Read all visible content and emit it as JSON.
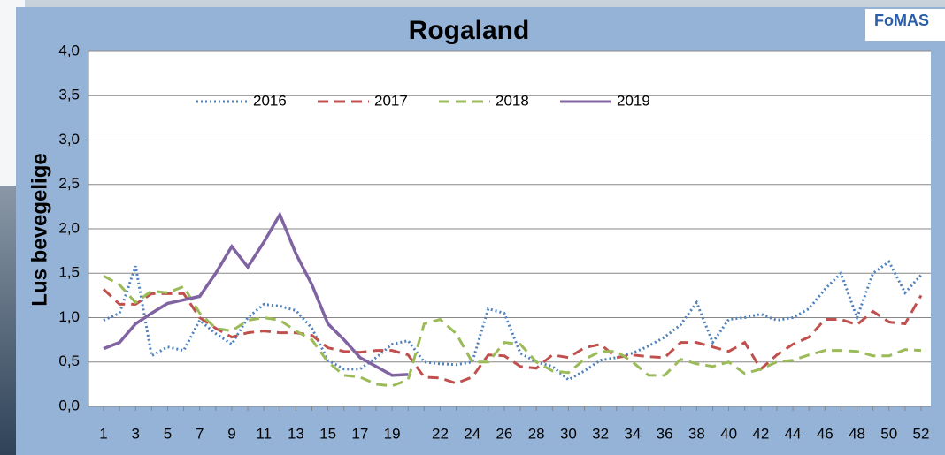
{
  "chart_data": {
    "type": "line",
    "title": "Rogaland",
    "y_label": "Lus bevegelige",
    "logo": "FoMAS",
    "categories": [
      "1",
      null,
      "3",
      null,
      "5",
      null,
      "7",
      null,
      "9",
      null,
      "11",
      null,
      "13",
      null,
      "15",
      null,
      "17",
      null,
      "19",
      null,
      null,
      "22",
      null,
      "24",
      null,
      "26",
      null,
      "28",
      null,
      "30",
      null,
      "32",
      null,
      "34",
      null,
      "36",
      null,
      "38",
      null,
      "40",
      null,
      "42",
      null,
      "44",
      null,
      "46",
      null,
      "48",
      null,
      "50",
      null,
      "52"
    ],
    "ylim": [
      0,
      4
    ],
    "yticks": [
      {
        "value": 0,
        "label": "0,0"
      },
      {
        "value": 0.5,
        "label": "0,5"
      },
      {
        "value": 1,
        "label": "1,0"
      },
      {
        "value": 1.5,
        "label": "1,5"
      },
      {
        "value": 2,
        "label": "2,0"
      },
      {
        "value": 2.5,
        "label": "2,5"
      },
      {
        "value": 3,
        "label": "3,0"
      },
      {
        "value": 3.5,
        "label": "3,5"
      },
      {
        "value": 4,
        "label": "4,0"
      }
    ],
    "grid": true,
    "legend": "top-left",
    "series": [
      {
        "name": "2016",
        "color": "#4f81bd",
        "dash": "dotted",
        "values": [
          0.97,
          1.05,
          1.58,
          0.57,
          0.67,
          0.63,
          0.97,
          0.82,
          0.7,
          1.0,
          1.15,
          1.13,
          1.08,
          0.88,
          0.52,
          0.42,
          0.42,
          0.55,
          0.7,
          0.74,
          0.5,
          0.48,
          0.47,
          0.5,
          1.1,
          1.05,
          0.6,
          0.5,
          0.45,
          0.3,
          0.4,
          0.52,
          0.55,
          0.6,
          0.68,
          0.78,
          0.92,
          1.17,
          0.72,
          0.98,
          1.0,
          1.04,
          0.97,
          1.0,
          1.1,
          1.32,
          1.5,
          1.0,
          1.5,
          1.63,
          1.28,
          1.48
        ]
      },
      {
        "name": "2017",
        "color": "#c0504d",
        "dash": "dashed",
        "values": [
          1.32,
          1.15,
          1.15,
          1.27,
          1.27,
          1.27,
          1.0,
          0.88,
          0.78,
          0.83,
          0.85,
          0.83,
          0.83,
          0.8,
          0.66,
          0.62,
          0.61,
          0.63,
          0.63,
          0.58,
          0.33,
          0.32,
          0.26,
          0.33,
          0.58,
          0.57,
          0.45,
          0.43,
          0.58,
          0.55,
          0.66,
          0.7,
          0.55,
          0.58,
          0.56,
          0.55,
          0.72,
          0.72,
          0.67,
          0.62,
          0.72,
          0.42,
          0.58,
          0.7,
          0.78,
          0.98,
          0.98,
          0.92,
          1.07,
          0.95,
          0.93,
          1.25
        ]
      },
      {
        "name": "2018",
        "color": "#9bbb59",
        "dash": "dashed",
        "values": [
          1.47,
          1.37,
          1.17,
          1.3,
          1.28,
          1.35,
          1.05,
          0.88,
          0.85,
          0.97,
          1.0,
          0.97,
          0.85,
          0.75,
          0.5,
          0.35,
          0.33,
          0.25,
          0.23,
          0.3,
          0.93,
          0.98,
          0.82,
          0.5,
          0.5,
          0.72,
          0.7,
          0.5,
          0.4,
          0.38,
          0.53,
          0.62,
          0.62,
          0.5,
          0.35,
          0.35,
          0.53,
          0.48,
          0.45,
          0.5,
          0.37,
          0.42,
          0.5,
          0.52,
          0.58,
          0.63,
          0.63,
          0.62,
          0.57,
          0.57,
          0.64,
          0.63
        ]
      },
      {
        "name": "2019",
        "color": "#8064a2",
        "dash": "solid",
        "values": [
          0.65,
          0.72,
          0.93,
          1.05,
          1.16,
          1.2,
          1.24,
          1.5,
          1.8,
          1.57,
          1.85,
          2.16,
          1.72,
          1.37,
          0.93,
          0.75,
          0.55,
          0.45,
          0.35,
          0.36,
          null,
          null,
          null,
          null,
          null,
          null,
          null,
          null,
          null,
          null,
          null,
          null,
          null,
          null,
          null,
          null,
          null,
          null,
          null,
          null,
          null,
          null,
          null,
          null,
          null,
          null,
          null,
          null,
          null,
          null,
          null,
          null
        ]
      }
    ]
  }
}
